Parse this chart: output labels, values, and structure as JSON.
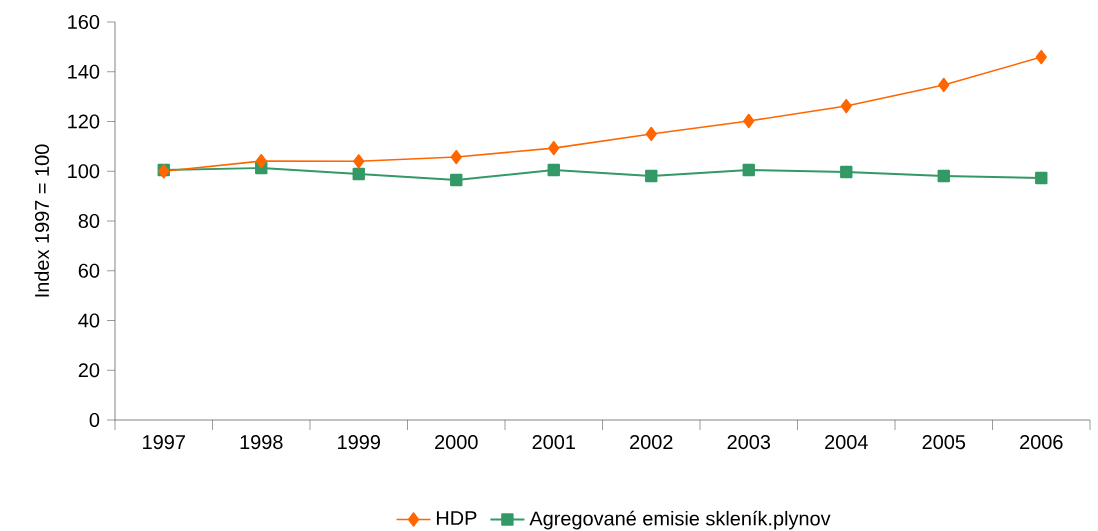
{
  "chart_data": {
    "type": "line",
    "ylabel": "Index 1997 = 100",
    "categories": [
      "1997",
      "1998",
      "1999",
      "2000",
      "2001",
      "2002",
      "2003",
      "2004",
      "2005",
      "2006"
    ],
    "series": [
      {
        "name": "HDP",
        "color": "#ff6600",
        "marker": "diamond",
        "values": [
          100,
          104.1,
          104,
          105.7,
          109.3,
          115,
          120.2,
          126.2,
          134.7,
          145.9
        ]
      },
      {
        "name": "Agregované emisie skleník.plynov",
        "color": "#339966",
        "marker": "square",
        "values": [
          100.5,
          101.3,
          98.9,
          96.5,
          100.5,
          98.1,
          100.5,
          99.7,
          98.1,
          97.3
        ]
      }
    ],
    "ylim": [
      0,
      160
    ],
    "yticks": [
      0,
      20,
      40,
      60,
      80,
      100,
      120,
      140,
      160
    ],
    "grid": false,
    "legend": "bottom",
    "line_style": "solid"
  }
}
